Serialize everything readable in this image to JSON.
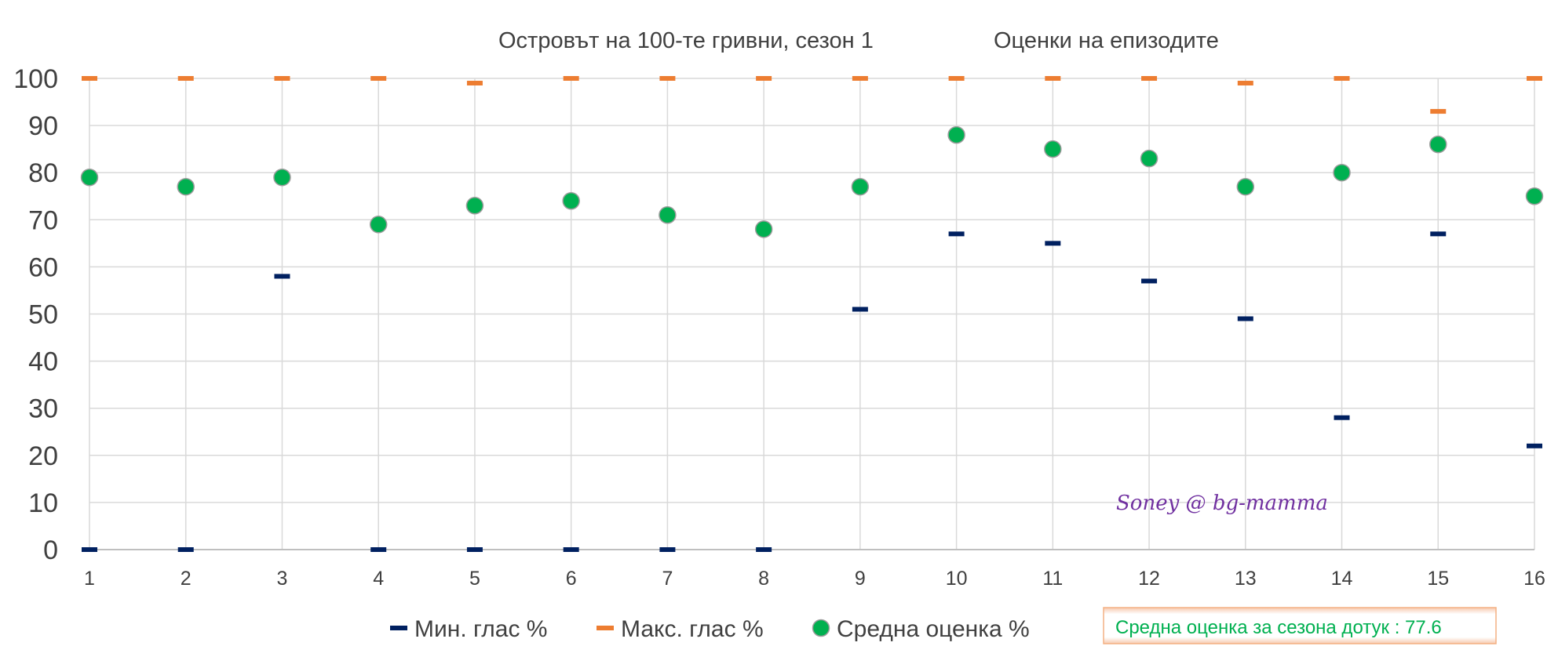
{
  "chart_data": {
    "type": "scatter",
    "title": "Островът на 100-те гривни, сезон 1",
    "subtitle": "Оценки на епизодите",
    "x": [
      1,
      2,
      3,
      4,
      5,
      6,
      7,
      8,
      9,
      10,
      11,
      12,
      13,
      14,
      15,
      16
    ],
    "ylim": [
      0,
      100
    ],
    "yticks": [
      0,
      10,
      20,
      30,
      40,
      50,
      60,
      70,
      80,
      90,
      100
    ],
    "grid": true,
    "legend_position": "bottom",
    "series": [
      {
        "name": "Мин. глас %",
        "marker": "dash",
        "color": "#002060",
        "values": [
          0,
          0,
          58,
          0,
          0,
          0,
          0,
          0,
          51,
          67,
          65,
          57,
          49,
          28,
          67,
          22
        ]
      },
      {
        "name": "Макс. глас %",
        "marker": "dash",
        "color": "#ed7d31",
        "values": [
          100,
          100,
          100,
          100,
          99,
          100,
          100,
          100,
          100,
          100,
          100,
          100,
          99,
          100,
          93,
          100
        ]
      },
      {
        "name": "Средна оценка %",
        "marker": "circle",
        "color": "#00b050",
        "values": [
          79,
          77,
          79,
          69,
          73,
          74,
          71,
          68,
          77,
          88,
          85,
          83,
          77,
          80,
          86,
          75
        ]
      }
    ],
    "annotations": {
      "watermark": "Soney @ bg-mamma",
      "summary": "Средна оценка за сезона дотук :  77.6"
    }
  }
}
